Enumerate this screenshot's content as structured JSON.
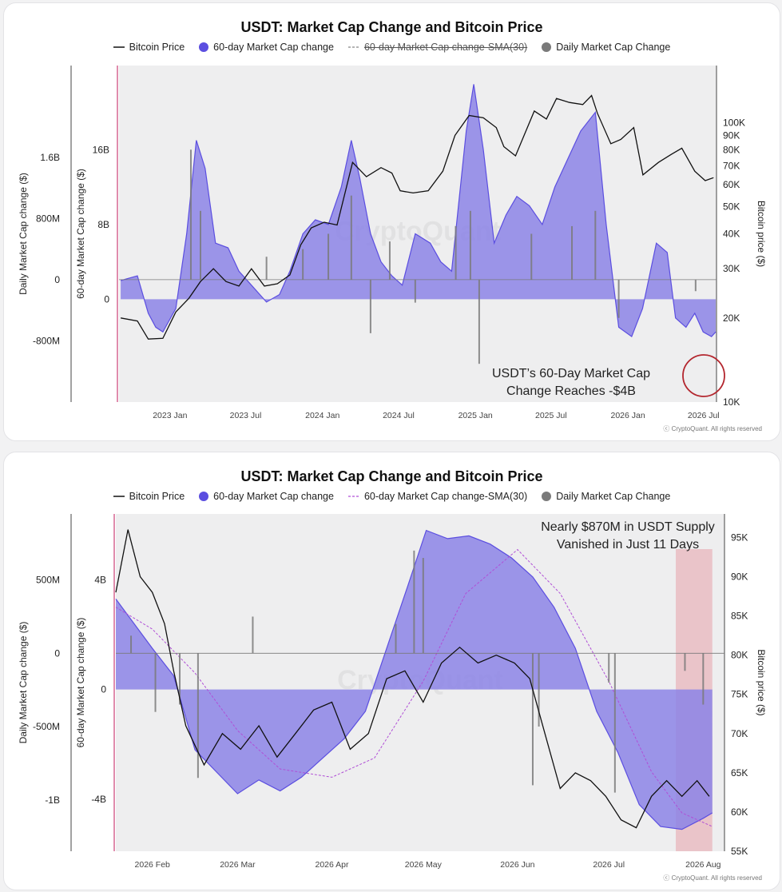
{
  "charts_text": {
    "top": {
      "title": "USDT: Market Cap Change and Bitcoin Price",
      "legend": [
        "Bitcoin Price",
        "60-day Market Cap change",
        "60-day Market Cap change-SMA(30)",
        "Daily Market Cap Change"
      ],
      "annotation": [
        "USDT’s 60-Day Market Cap",
        "Change Reaches -$4B"
      ],
      "copyright": "ⓒ CryptoQuant. All rights reserved",
      "watermark": "CryptoQuant"
    },
    "bottom": {
      "title": "USDT: Market Cap Change and Bitcoin Price",
      "legend": [
        "Bitcoin Price",
        "60-day Market Cap change",
        "60-day Market Cap change-SMA(30)",
        "Daily Market Cap Change"
      ],
      "annotation": [
        "Nearly $870M in USDT Supply",
        "Vanished in Just 11 Days"
      ],
      "copyright": "ⓒ CryptoQuant. All rights reserved",
      "watermark": "CryptoQuant"
    }
  },
  "colors": {
    "btc": "#111111",
    "mc60": "#5b4ee0",
    "mc60_fill": "#8c84e6",
    "sma": "#b04fd6",
    "daily": "#7a7a7a",
    "plot_bg": "#eeeeef",
    "highlight": "#e8a3aa",
    "circle": "#b3262e"
  },
  "chart_data": [
    {
      "type": "line",
      "title": "USDT: Market Cap Change and Bitcoin Price",
      "x_range": [
        "2022-09",
        "2026-08"
      ],
      "x_ticks": [
        "2023 Jan",
        "2023 Jul",
        "2024 Jan",
        "2024 Jul",
        "2025 Jan",
        "2025 Jul",
        "2026 Jan",
        "2026 Jul"
      ],
      "axes": {
        "daily": {
          "label": "Daily Market Cap change ($)",
          "ticks": [
            "1.6B",
            "800M",
            "0",
            "-800M"
          ],
          "range": [
            -1600000000,
            2800000000
          ]
        },
        "mc60": {
          "label": "60-day Market Cap change ($)",
          "ticks": [
            "16B",
            "8B",
            "0"
          ],
          "range": [
            -11000000000,
            25000000000
          ]
        },
        "btc": {
          "label": "Bitcoin price ($)",
          "scale": "log",
          "ticks": [
            "100K",
            "90K",
            "80K",
            "70K",
            "60K",
            "50K",
            "40K",
            "30K",
            "20K",
            "10K"
          ],
          "range": [
            10000,
            160000
          ]
        }
      },
      "series": [
        {
          "name": "Bitcoin Price",
          "x": [
            "2022-09-05",
            "2022-10-15",
            "2022-11-10",
            "2022-12-15",
            "2023-01-15",
            "2023-02-15",
            "2023-03-15",
            "2023-04-15",
            "2023-05-15",
            "2023-06-15",
            "2023-07-15",
            "2023-08-15",
            "2023-09-15",
            "2023-10-15",
            "2023-11-10",
            "2023-12-05",
            "2024-01-05",
            "2024-02-05",
            "2024-03-13",
            "2024-04-15",
            "2024-05-20",
            "2024-06-15",
            "2024-07-05",
            "2024-08-05",
            "2024-09-10",
            "2024-10-15",
            "2024-11-13",
            "2024-12-17",
            "2025-01-20",
            "2025-02-20",
            "2025-03-10",
            "2025-04-07",
            "2025-05-22",
            "2025-06-20",
            "2025-07-14",
            "2025-08-14",
            "2025-09-15",
            "2025-10-06",
            "2025-10-20",
            "2025-11-21",
            "2025-12-15",
            "2026-01-15",
            "2026-02-06",
            "2026-03-15",
            "2026-04-15",
            "2026-05-10",
            "2026-06-10",
            "2026-07-05",
            "2026-07-25"
          ],
          "values": [
            20000,
            19500,
            16800,
            16900,
            21000,
            23500,
            27000,
            30000,
            27000,
            26000,
            30000,
            26000,
            26500,
            28500,
            36500,
            42000,
            44000,
            43000,
            72000,
            64000,
            69000,
            66000,
            57000,
            56000,
            57000,
            67000,
            90000,
            106000,
            104000,
            96000,
            82000,
            76000,
            110000,
            103000,
            122000,
            118000,
            116000,
            125000,
            108000,
            84000,
            87000,
            96000,
            65000,
            72000,
            77000,
            81000,
            67000,
            62000,
            63500
          ]
        },
        {
          "name": "60-day Market Cap change",
          "x": [
            "2022-09-05",
            "2022-10-15",
            "2022-11-10",
            "2022-11-28",
            "2022-12-15",
            "2023-01-15",
            "2023-02-10",
            "2023-03-05",
            "2023-03-26",
            "2023-04-20",
            "2023-05-20",
            "2023-06-15",
            "2023-07-15",
            "2023-08-20",
            "2023-09-20",
            "2023-10-15",
            "2023-11-15",
            "2023-12-15",
            "2024-01-15",
            "2024-02-15",
            "2024-03-10",
            "2024-03-30",
            "2024-04-25",
            "2024-05-20",
            "2024-06-15",
            "2024-07-10",
            "2024-08-10",
            "2024-09-15",
            "2024-10-10",
            "2024-11-05",
            "2024-12-10",
            "2024-12-28",
            "2025-01-20",
            "2025-02-15",
            "2025-03-15",
            "2025-04-10",
            "2025-05-10",
            "2025-06-10",
            "2025-07-10",
            "2025-08-10",
            "2025-09-10",
            "2025-10-15",
            "2025-11-10",
            "2025-12-10",
            "2026-01-10",
            "2026-02-05",
            "2026-03-10",
            "2026-04-05",
            "2026-04-25",
            "2026-05-20",
            "2026-06-10",
            "2026-06-30",
            "2026-07-20",
            "2026-07-30"
          ],
          "values": [
            2000000000,
            2500000000,
            -1500000000,
            -3000000000,
            -3500000000,
            -1000000000,
            7000000000,
            17000000000,
            14000000000,
            6000000000,
            5500000000,
            3000000000,
            1500000000,
            -300000000,
            500000000,
            3000000000,
            7000000000,
            8500000000,
            8000000000,
            12000000000,
            17000000000,
            13000000000,
            7000000000,
            4000000000,
            2500000000,
            1500000000,
            7000000000,
            6000000000,
            4000000000,
            3000000000,
            18000000000,
            23000000000,
            16000000000,
            6000000000,
            9000000000,
            11000000000,
            10000000000,
            8000000000,
            12000000000,
            15000000000,
            18000000000,
            20000000000,
            8000000000,
            -3000000000,
            -4000000000,
            -1000000000,
            6000000000,
            5000000000,
            -2000000000,
            -3000000000,
            -1500000000,
            -3500000000,
            -4000000000,
            -3500000000
          ]
        },
        {
          "name": "Daily Market Cap Change",
          "x": [
            "2023-02-20",
            "2023-03-15",
            "2023-08-20",
            "2023-11-15",
            "2024-01-15",
            "2024-03-10",
            "2024-04-25",
            "2024-06-10",
            "2024-08-10",
            "2024-11-15",
            "2024-12-20",
            "2025-01-10",
            "2025-05-15",
            "2025-08-20",
            "2025-10-15",
            "2025-12-10",
            "2026-06-12"
          ],
          "values": [
            1700000000,
            900000000,
            300000000,
            400000000,
            600000000,
            1100000000,
            -700000000,
            500000000,
            -300000000,
            700000000,
            900000000,
            -1100000000,
            600000000,
            700000000,
            900000000,
            -500000000,
            -150000000
          ]
        }
      ]
    },
    {
      "type": "line",
      "title": "USDT: Market Cap Change and Bitcoin Price",
      "x_range": [
        "2026-01-20",
        "2026-08-08"
      ],
      "x_ticks": [
        "2026 Feb",
        "2026 Mar",
        "2026 Apr",
        "2026 May",
        "2026 Jun",
        "2026 Jul",
        "2026 Aug"
      ],
      "axes": {
        "daily": {
          "label": "Daily Market Cap change ($)",
          "ticks": [
            "500M",
            "0",
            "-500M",
            "-1B"
          ],
          "range": [
            -1350000000,
            950000000
          ]
        },
        "mc60": {
          "label": "60-day Market Cap change ($)",
          "ticks": [
            "4B",
            "0",
            "-4B"
          ],
          "range": [
            -5900000000,
            6400000000
          ]
        },
        "btc": {
          "label": "Bitcoin price ($)",
          "scale": "linear",
          "ticks": [
            "95K",
            "90K",
            "85K",
            "80K",
            "75K",
            "70K",
            "65K",
            "60K",
            "55K"
          ],
          "range": [
            55000,
            98000
          ]
        }
      },
      "series": [
        {
          "name": "Bitcoin Price",
          "x": [
            "2026-01-20",
            "2026-01-24",
            "2026-01-28",
            "2026-02-01",
            "2026-02-05",
            "2026-02-08",
            "2026-02-12",
            "2026-02-18",
            "2026-02-24",
            "2026-03-02",
            "2026-03-08",
            "2026-03-14",
            "2026-03-20",
            "2026-03-26",
            "2026-04-01",
            "2026-04-07",
            "2026-04-13",
            "2026-04-19",
            "2026-04-25",
            "2026-05-01",
            "2026-05-07",
            "2026-05-13",
            "2026-05-19",
            "2026-05-25",
            "2026-05-31",
            "2026-06-05",
            "2026-06-10",
            "2026-06-15",
            "2026-06-20",
            "2026-06-25",
            "2026-06-30",
            "2026-07-05",
            "2026-07-10",
            "2026-07-15",
            "2026-07-20",
            "2026-07-25",
            "2026-07-30",
            "2026-08-03"
          ],
          "values": [
            88000,
            96000,
            90000,
            88000,
            84000,
            78000,
            71000,
            66000,
            70000,
            68000,
            71000,
            67000,
            70000,
            73000,
            74000,
            68000,
            70000,
            77000,
            78000,
            74000,
            79000,
            81000,
            79000,
            80000,
            79000,
            77000,
            70000,
            63000,
            65000,
            64000,
            62000,
            59000,
            58000,
            62000,
            64000,
            62000,
            64000,
            62000
          ]
        },
        {
          "name": "60-day Market Cap change",
          "x": [
            "2026-01-20",
            "2026-02-01",
            "2026-02-08",
            "2026-02-15",
            "2026-02-22",
            "2026-03-01",
            "2026-03-08",
            "2026-03-15",
            "2026-03-22",
            "2026-03-29",
            "2026-04-05",
            "2026-04-12",
            "2026-04-19",
            "2026-04-26",
            "2026-05-02",
            "2026-05-09",
            "2026-05-16",
            "2026-05-23",
            "2026-05-30",
            "2026-06-06",
            "2026-06-13",
            "2026-06-20",
            "2026-06-27",
            "2026-07-04",
            "2026-07-11",
            "2026-07-18",
            "2026-07-25",
            "2026-08-01",
            "2026-08-04"
          ],
          "values": [
            3300000000,
            1500000000,
            500000000,
            -2200000000,
            -3000000000,
            -3800000000,
            -3300000000,
            -3700000000,
            -3200000000,
            -2500000000,
            -1800000000,
            -800000000,
            1500000000,
            3800000000,
            5800000000,
            5500000000,
            5600000000,
            5300000000,
            4800000000,
            4100000000,
            3000000000,
            1500000000,
            -800000000,
            -2300000000,
            -4200000000,
            -5000000000,
            -5100000000,
            -4700000000,
            -4500000000
          ]
        },
        {
          "name": "60-day Market Cap change-SMA(30)",
          "x": [
            "2026-01-20",
            "2026-02-01",
            "2026-02-15",
            "2026-03-01",
            "2026-03-15",
            "2026-04-01",
            "2026-04-15",
            "2026-05-01",
            "2026-05-15",
            "2026-06-01",
            "2026-06-15",
            "2026-07-01",
            "2026-07-15",
            "2026-07-25",
            "2026-08-04"
          ],
          "values": [
            3000000000,
            2200000000,
            600000000,
            -1500000000,
            -2900000000,
            -3200000000,
            -2500000000,
            300000000,
            3500000000,
            5100000000,
            3500000000,
            300000000,
            -3000000000,
            -4500000000,
            -5000000000
          ]
        },
        {
          "name": "Daily Market Cap Change",
          "x": [
            "2026-01-25",
            "2026-02-02",
            "2026-02-10",
            "2026-02-16",
            "2026-03-06",
            "2026-04-22",
            "2026-04-28",
            "2026-05-01",
            "2026-06-06",
            "2026-06-08",
            "2026-07-01",
            "2026-07-03",
            "2026-07-26",
            "2026-08-01"
          ],
          "values": [
            120000000,
            -400000000,
            -350000000,
            -850000000,
            250000000,
            200000000,
            700000000,
            650000000,
            -900000000,
            -500000000,
            -200000000,
            -950000000,
            -120000000,
            -350000000
          ]
        }
      ],
      "highlight": {
        "from": "2026-07-23",
        "to": "2026-08-04"
      }
    }
  ]
}
